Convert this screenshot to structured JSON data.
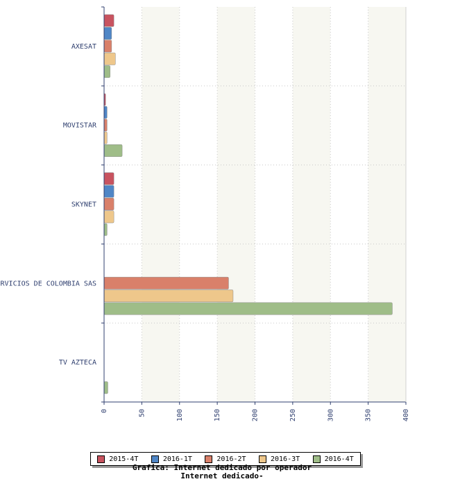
{
  "chart_data": {
    "type": "bar",
    "orientation": "horizontal",
    "title": "Grafica: Internet dedicado por operador",
    "subtitle": "Internet dedicado-",
    "xlabel": "",
    "ylabel": "",
    "xlim": [
      0,
      400
    ],
    "x_ticks": [
      "0",
      "50",
      "100",
      "150",
      "200",
      "250",
      "300",
      "350",
      "400"
    ],
    "categories": [
      "AXESAT",
      "MOVISTAR",
      "SKYNET",
      "RVICIOS DE COLOMBIA SAS",
      "TV AZTECA"
    ],
    "series": [
      {
        "name": "2015-4T",
        "color": "#c8535f",
        "values": [
          13,
          2,
          13,
          0,
          0
        ]
      },
      {
        "name": "2016-1T",
        "color": "#4f86c6",
        "values": [
          10,
          4,
          13,
          0,
          0
        ]
      },
      {
        "name": "2016-2T",
        "color": "#d9806a",
        "values": [
          10,
          4,
          13,
          165,
          0
        ]
      },
      {
        "name": "2016-3T",
        "color": "#eec78b",
        "values": [
          15,
          4,
          13,
          171,
          0
        ]
      },
      {
        "name": "2016-4T",
        "color": "#9fbd88",
        "values": [
          8,
          24,
          4,
          382,
          5
        ]
      }
    ],
    "grid": true,
    "legend_position": "bottom"
  }
}
